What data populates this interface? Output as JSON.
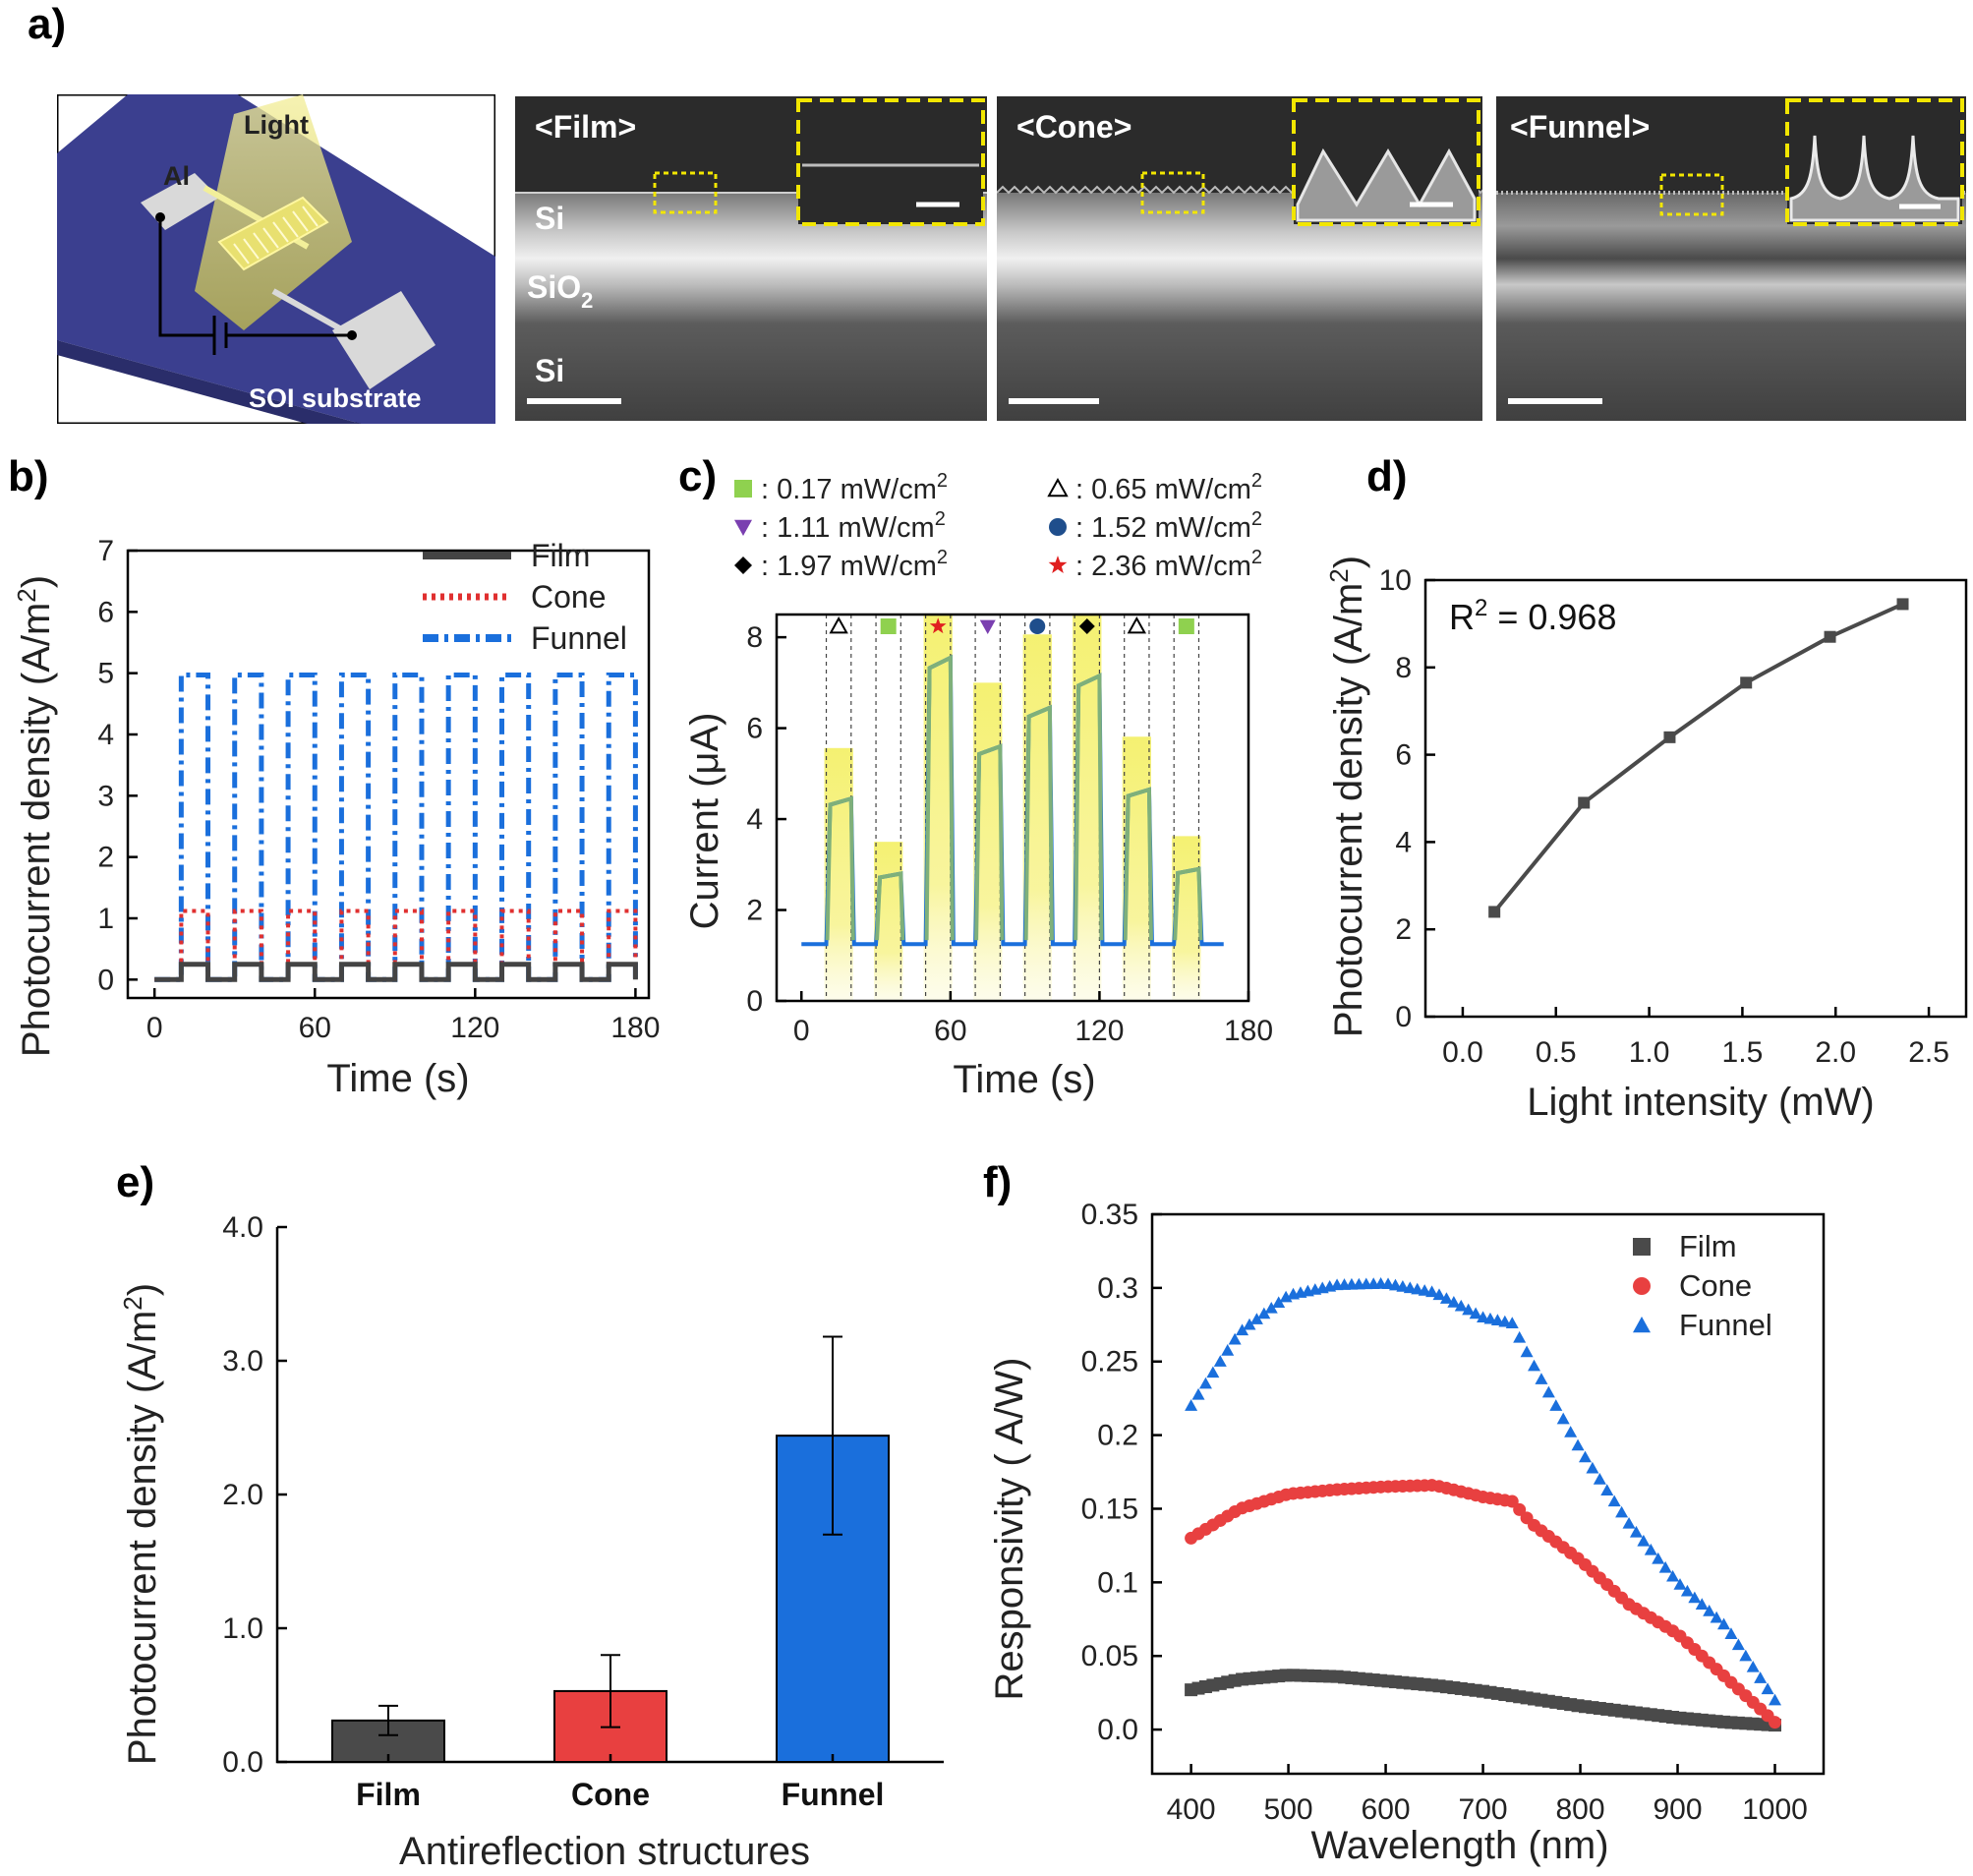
{
  "panels": {
    "a": "a)",
    "b": "b)",
    "c": "c)",
    "d": "d)",
    "e": "e)",
    "f": "f)"
  },
  "schematic": {
    "light": "Light",
    "al": "Al",
    "substrate": "SOI substrate",
    "colors": {
      "substrate": "#3b3f8f",
      "light": "#e8e06a",
      "pad": "#d9d9d9"
    }
  },
  "sem": {
    "film_title": "<Film>",
    "cone_title": "<Cone>",
    "funnel_title": "<Funnel>",
    "si_top": "Si",
    "sio2": "SiO",
    "sio2_sub": "2",
    "si_bottom": "Si"
  },
  "chart_data": [
    {
      "id": "b",
      "type": "line",
      "xlabel": "Time (s)",
      "ylabel": "Photocurrent density (A/m",
      "ylabel_sup": "2",
      "ylabel_end": ")",
      "xlim": [
        -10,
        185
      ],
      "ylim": [
        -0.3,
        7
      ],
      "xticks": [
        0,
        60,
        120,
        180
      ],
      "yticks": [
        0,
        1,
        2,
        3,
        4,
        5,
        6,
        7
      ],
      "period_s": 20,
      "on_duration_s": 10,
      "first_on_s": 10,
      "series": [
        {
          "name": "Film",
          "on_value": 0.25,
          "off_value": 0.0,
          "color": "#444444",
          "style": "solid"
        },
        {
          "name": "Cone",
          "on_value": 1.12,
          "off_value": 0.0,
          "color": "#e03030",
          "style": "dot"
        },
        {
          "name": "Funnel",
          "on_value": 4.97,
          "off_value": 0.0,
          "color": "#1a6fdc",
          "style": "dashdot"
        }
      ]
    },
    {
      "id": "c",
      "type": "line",
      "xlabel": "Time (s)",
      "ylabel": "Current (μA)",
      "xlim": [
        -10,
        180
      ],
      "ylim": [
        0,
        8.5
      ],
      "xticks": [
        0,
        60,
        120,
        180
      ],
      "yticks": [
        0,
        2,
        4,
        6,
        8
      ],
      "baseline": 1.25,
      "pulses": [
        {
          "start": 10,
          "end": 20,
          "value": 4.45,
          "marker": "triangle-open"
        },
        {
          "start": 30,
          "end": 40,
          "value": 2.8,
          "marker": "square"
        },
        {
          "start": 50,
          "end": 60,
          "value": 7.55,
          "marker": "star"
        },
        {
          "start": 70,
          "end": 80,
          "value": 5.6,
          "marker": "triangle-down"
        },
        {
          "start": 90,
          "end": 100,
          "value": 6.45,
          "marker": "circle"
        },
        {
          "start": 110,
          "end": 120,
          "value": 7.15,
          "marker": "diamond"
        },
        {
          "start": 130,
          "end": 140,
          "value": 4.65,
          "marker": "triangle-open"
        },
        {
          "start": 150,
          "end": 160,
          "value": 2.9,
          "marker": "square"
        }
      ],
      "legend": [
        {
          "marker": "square",
          "color": "#8fd14f",
          "label": ": 0.17 mW/cm",
          "sup": "2"
        },
        {
          "marker": "triangle-open",
          "color": "#000000",
          "label": ": 0.65 mW/cm",
          "sup": "2"
        },
        {
          "marker": "triangle-down",
          "color": "#7a3fb0",
          "label": ": 1.11 mW/cm",
          "sup": "2"
        },
        {
          "marker": "circle",
          "color": "#1f4e8c",
          "label": ": 1.52 mW/cm",
          "sup": "2"
        },
        {
          "marker": "diamond",
          "color": "#000000",
          "label": ": 1.97 mW/cm",
          "sup": "2"
        },
        {
          "marker": "star",
          "color": "#e02020",
          "label": ": 2.36 mW/cm",
          "sup": "2"
        }
      ]
    },
    {
      "id": "d",
      "type": "line",
      "xlabel": "Light intensity (mW)",
      "ylabel": "Photocurrent density (A/m",
      "ylabel_sup": "2",
      "ylabel_end": ")",
      "xlim": [
        -0.2,
        2.7
      ],
      "ylim": [
        0,
        10
      ],
      "xticks": [
        0.0,
        0.5,
        1.0,
        1.5,
        2.0,
        2.5
      ],
      "xtick_labels": [
        "0.0",
        "0.5",
        "1.0",
        "1.5",
        "2.0",
        "2.5"
      ],
      "yticks": [
        0,
        2,
        4,
        6,
        8,
        10
      ],
      "x": [
        0.17,
        0.65,
        1.11,
        1.52,
        1.97,
        2.36
      ],
      "y": [
        2.4,
        4.9,
        6.4,
        7.65,
        8.7,
        9.45
      ],
      "annotation": "R",
      "annotation_sup": "2",
      "annotation_end": " = 0.968"
    },
    {
      "id": "e",
      "type": "bar",
      "xlabel": "Antireflection structures",
      "ylabel": "Photocurrent density (A/m",
      "ylabel_sup": "2",
      "ylabel_end": ")",
      "ylim": [
        0,
        4.0
      ],
      "yticks": [
        0,
        1,
        2,
        3,
        4
      ],
      "ytick_labels": [
        "0.0",
        "1.0",
        "2.0",
        "3.0",
        "4.0"
      ],
      "categories": [
        "Film",
        "Cone",
        "Funnel"
      ],
      "values": [
        0.31,
        0.53,
        2.44
      ],
      "errors": [
        0.11,
        0.27,
        0.74
      ],
      "colors": [
        "#4a4a4a",
        "#e84040",
        "#1a6fdc"
      ]
    },
    {
      "id": "f",
      "type": "scatter",
      "xlabel": "Wavelength (nm)",
      "ylabel": "Responsivity ( A/W)",
      "xlim": [
        360,
        1050
      ],
      "ylim": [
        -0.03,
        0.35
      ],
      "xticks": [
        400,
        500,
        600,
        700,
        800,
        900,
        1000
      ],
      "yticks": [
        0.0,
        0.05,
        0.1,
        0.15,
        0.2,
        0.25,
        0.3,
        0.35
      ],
      "ytick_labels": [
        "0.0",
        "0.05",
        "0.1",
        "0.15",
        "0.2",
        "0.25",
        "0.3",
        "0.35"
      ],
      "series": [
        {
          "name": "Film",
          "marker": "square",
          "color": "#4a4a4a",
          "x": [
            400,
            450,
            500,
            550,
            600,
            650,
            700,
            750,
            800,
            850,
            900,
            950,
            1000
          ],
          "y": [
            0.027,
            0.034,
            0.037,
            0.036,
            0.033,
            0.03,
            0.026,
            0.021,
            0.016,
            0.012,
            0.008,
            0.005,
            0.003
          ]
        },
        {
          "name": "Cone",
          "marker": "circle",
          "color": "#e84040",
          "x": [
            400,
            450,
            500,
            550,
            600,
            650,
            700,
            730,
            750,
            800,
            850,
            900,
            950,
            1000
          ],
          "y": [
            0.13,
            0.15,
            0.16,
            0.163,
            0.165,
            0.166,
            0.158,
            0.155,
            0.14,
            0.115,
            0.085,
            0.065,
            0.035,
            0.005
          ]
        },
        {
          "name": "Funnel",
          "marker": "triangle",
          "color": "#1a6fdc",
          "x": [
            400,
            450,
            500,
            550,
            600,
            650,
            700,
            730,
            750,
            800,
            850,
            900,
            950,
            1000
          ],
          "y": [
            0.22,
            0.27,
            0.295,
            0.302,
            0.303,
            0.297,
            0.28,
            0.276,
            0.25,
            0.19,
            0.14,
            0.1,
            0.07,
            0.02
          ]
        }
      ]
    }
  ]
}
